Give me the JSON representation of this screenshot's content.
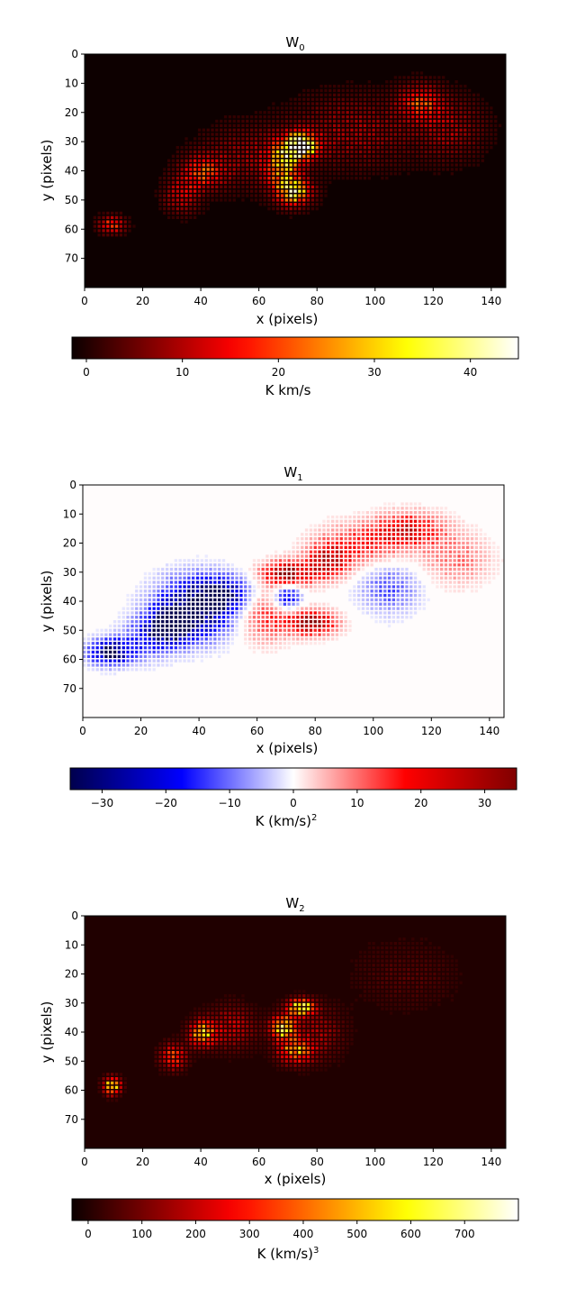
{
  "chart_data": [
    {
      "type": "heatmap",
      "id": "w0",
      "title": {
        "main": "W",
        "sub": "0"
      },
      "xlabel": "x (pixels)",
      "ylabel": "y (pixels)",
      "xlim": [
        0,
        145
      ],
      "ylim": [
        80,
        0
      ],
      "xticks": [
        "0",
        "20",
        "40",
        "60",
        "80",
        "100",
        "120",
        "140"
      ],
      "yticks": [
        "0",
        "10",
        "20",
        "30",
        "40",
        "50",
        "60",
        "70"
      ],
      "colormap": "hot",
      "colorbar": {
        "label": {
          "main": "K km/s",
          "sup": ""
        },
        "range": [
          -1.5,
          45
        ],
        "ticks": [
          "0",
          "10",
          "20",
          "30",
          "40"
        ],
        "tick_values": [
          0,
          10,
          20,
          30,
          40
        ]
      },
      "hotspots": [
        {
          "x": 74,
          "y": 31,
          "value": 45,
          "rx": 4,
          "ry": 3
        },
        {
          "x": 72,
          "y": 47,
          "value": 30,
          "rx": 4,
          "ry": 3
        },
        {
          "x": 68,
          "y": 38,
          "value": 26,
          "rx": 4,
          "ry": 6
        },
        {
          "x": 40,
          "y": 40,
          "value": 18,
          "rx": 5,
          "ry": 4
        },
        {
          "x": 33,
          "y": 48,
          "value": 14,
          "rx": 4,
          "ry": 4
        },
        {
          "x": 9,
          "y": 58,
          "value": 20,
          "rx": 3,
          "ry": 2
        },
        {
          "x": 115,
          "y": 16,
          "value": 18,
          "rx": 5,
          "ry": 4
        },
        {
          "x": 92,
          "y": 26,
          "value": 9,
          "rx": 14,
          "ry": 8
        },
        {
          "x": 55,
          "y": 35,
          "value": 8,
          "rx": 10,
          "ry": 7
        },
        {
          "x": 125,
          "y": 25,
          "value": 9,
          "rx": 8,
          "ry": 7
        }
      ]
    },
    {
      "type": "heatmap",
      "id": "w1",
      "title": {
        "main": "W",
        "sub": "1"
      },
      "xlabel": "x (pixels)",
      "ylabel": "y (pixels)",
      "xlim": [
        0,
        145
      ],
      "ylim": [
        80,
        0
      ],
      "xticks": [
        "0",
        "20",
        "40",
        "60",
        "80",
        "100",
        "120",
        "140"
      ],
      "yticks": [
        "0",
        "10",
        "20",
        "30",
        "40",
        "50",
        "60",
        "70"
      ],
      "colormap": "seismic",
      "colorbar": {
        "label": {
          "main": "K (km/s)",
          "sup": "2"
        },
        "range": [
          -35,
          35
        ],
        "ticks": [
          "−30",
          "−20",
          "−10",
          "0",
          "10",
          "20",
          "30"
        ],
        "tick_values": [
          -30,
          -20,
          -10,
          0,
          10,
          20,
          30
        ]
      },
      "hotspots": [
        {
          "x": 38,
          "y": 42,
          "value": -35,
          "rx": 9,
          "ry": 7
        },
        {
          "x": 30,
          "y": 48,
          "value": -32,
          "rx": 5,
          "ry": 4
        },
        {
          "x": 9,
          "y": 57,
          "value": -35,
          "rx": 5,
          "ry": 3
        },
        {
          "x": 48,
          "y": 37,
          "value": -25,
          "rx": 6,
          "ry": 4
        },
        {
          "x": 70,
          "y": 38,
          "value": -25,
          "rx": 3,
          "ry": 3
        },
        {
          "x": 22,
          "y": 52,
          "value": -15,
          "rx": 6,
          "ry": 5
        },
        {
          "x": 105,
          "y": 35,
          "value": -12,
          "rx": 7,
          "ry": 6
        },
        {
          "x": 70,
          "y": 30,
          "value": 33,
          "rx": 6,
          "ry": 3
        },
        {
          "x": 78,
          "y": 47,
          "value": 30,
          "rx": 6,
          "ry": 3
        },
        {
          "x": 84,
          "y": 26,
          "value": 25,
          "rx": 5,
          "ry": 4
        },
        {
          "x": 112,
          "y": 15,
          "value": 22,
          "rx": 8,
          "ry": 4
        },
        {
          "x": 95,
          "y": 20,
          "value": 15,
          "rx": 10,
          "ry": 5
        },
        {
          "x": 128,
          "y": 25,
          "value": 10,
          "rx": 8,
          "ry": 6
        },
        {
          "x": 62,
          "y": 45,
          "value": 14,
          "rx": 6,
          "ry": 6
        }
      ]
    },
    {
      "type": "heatmap",
      "id": "w2",
      "title": {
        "main": "W",
        "sub": "2"
      },
      "xlabel": "x (pixels)",
      "ylabel": "y (pixels)",
      "xlim": [
        0,
        145
      ],
      "ylim": [
        80,
        0
      ],
      "xticks": [
        "0",
        "20",
        "40",
        "60",
        "80",
        "100",
        "120",
        "140"
      ],
      "yticks": [
        "0",
        "10",
        "20",
        "30",
        "40",
        "50",
        "60",
        "70"
      ],
      "colormap": "hot",
      "colorbar": {
        "label": {
          "main": "K (km/s)",
          "sup": "3"
        },
        "range": [
          -30,
          800
        ],
        "ticks": [
          "0",
          "100",
          "200",
          "300",
          "400",
          "500",
          "600",
          "700"
        ],
        "tick_values": [
          0,
          100,
          200,
          300,
          400,
          500,
          600,
          700
        ]
      },
      "hotspots": [
        {
          "x": 74,
          "y": 31,
          "value": 700,
          "rx": 3,
          "ry": 2
        },
        {
          "x": 68,
          "y": 38,
          "value": 600,
          "rx": 3,
          "ry": 3
        },
        {
          "x": 9,
          "y": 58,
          "value": 650,
          "rx": 2,
          "ry": 2
        },
        {
          "x": 40,
          "y": 40,
          "value": 520,
          "rx": 3,
          "ry": 3
        },
        {
          "x": 72,
          "y": 46,
          "value": 450,
          "rx": 4,
          "ry": 3
        },
        {
          "x": 30,
          "y": 48,
          "value": 350,
          "rx": 3,
          "ry": 3
        },
        {
          "x": 50,
          "y": 38,
          "value": 200,
          "rx": 6,
          "ry": 5
        },
        {
          "x": 80,
          "y": 40,
          "value": 150,
          "rx": 6,
          "ry": 6
        },
        {
          "x": 110,
          "y": 20,
          "value": 60,
          "rx": 12,
          "ry": 8
        }
      ]
    }
  ]
}
